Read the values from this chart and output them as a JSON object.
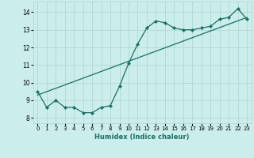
{
  "xlabel": "Humidex (Indice chaleur)",
  "bg_color": "#cbeeed",
  "grid_color": "#b0d8d5",
  "line_color": "#1a6e62",
  "xlim": [
    -0.5,
    23.5
  ],
  "ylim": [
    7.7,
    14.6
  ],
  "xticks": [
    0,
    1,
    2,
    3,
    4,
    5,
    6,
    7,
    8,
    9,
    10,
    11,
    12,
    13,
    14,
    15,
    16,
    17,
    18,
    19,
    20,
    21,
    22,
    23
  ],
  "yticks": [
    8,
    9,
    10,
    11,
    12,
    13,
    14
  ],
  "line1_x": [
    0,
    1,
    2,
    3,
    4,
    5,
    6,
    7,
    8,
    9,
    10,
    11,
    12,
    13,
    14,
    15,
    16,
    17,
    18,
    19,
    20,
    21,
    22,
    23
  ],
  "line1_y": [
    9.5,
    8.6,
    9.0,
    8.6,
    8.6,
    8.3,
    8.3,
    8.6,
    8.7,
    9.8,
    11.1,
    12.2,
    13.1,
    13.5,
    13.4,
    13.1,
    13.0,
    13.0,
    13.1,
    13.2,
    13.6,
    13.7,
    14.2,
    13.6
  ],
  "line2_x": [
    0,
    23
  ],
  "line2_y": [
    9.3,
    13.7
  ]
}
